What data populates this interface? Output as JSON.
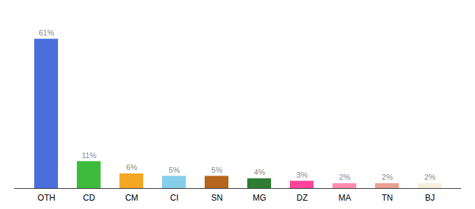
{
  "chart_data": {
    "type": "bar",
    "categories": [
      "OTH",
      "CD",
      "CM",
      "CI",
      "SN",
      "MG",
      "DZ",
      "MA",
      "TN",
      "BJ"
    ],
    "values": [
      61,
      11,
      6,
      5,
      5,
      4,
      3,
      2,
      2,
      2
    ],
    "value_labels": [
      "61%",
      "11%",
      "6%",
      "5%",
      "5%",
      "4%",
      "3%",
      "2%",
      "2%",
      "2%"
    ],
    "colors": [
      "#4a6fdc",
      "#3dbb3d",
      "#f5a623",
      "#87ceeb",
      "#b5651d",
      "#2e7d32",
      "#ff4499",
      "#ff8cb0",
      "#e8a090",
      "#f5f0dc"
    ],
    "ylim": [
      0,
      70
    ],
    "data_labels": true,
    "tick_labels": "x",
    "grid": false
  }
}
